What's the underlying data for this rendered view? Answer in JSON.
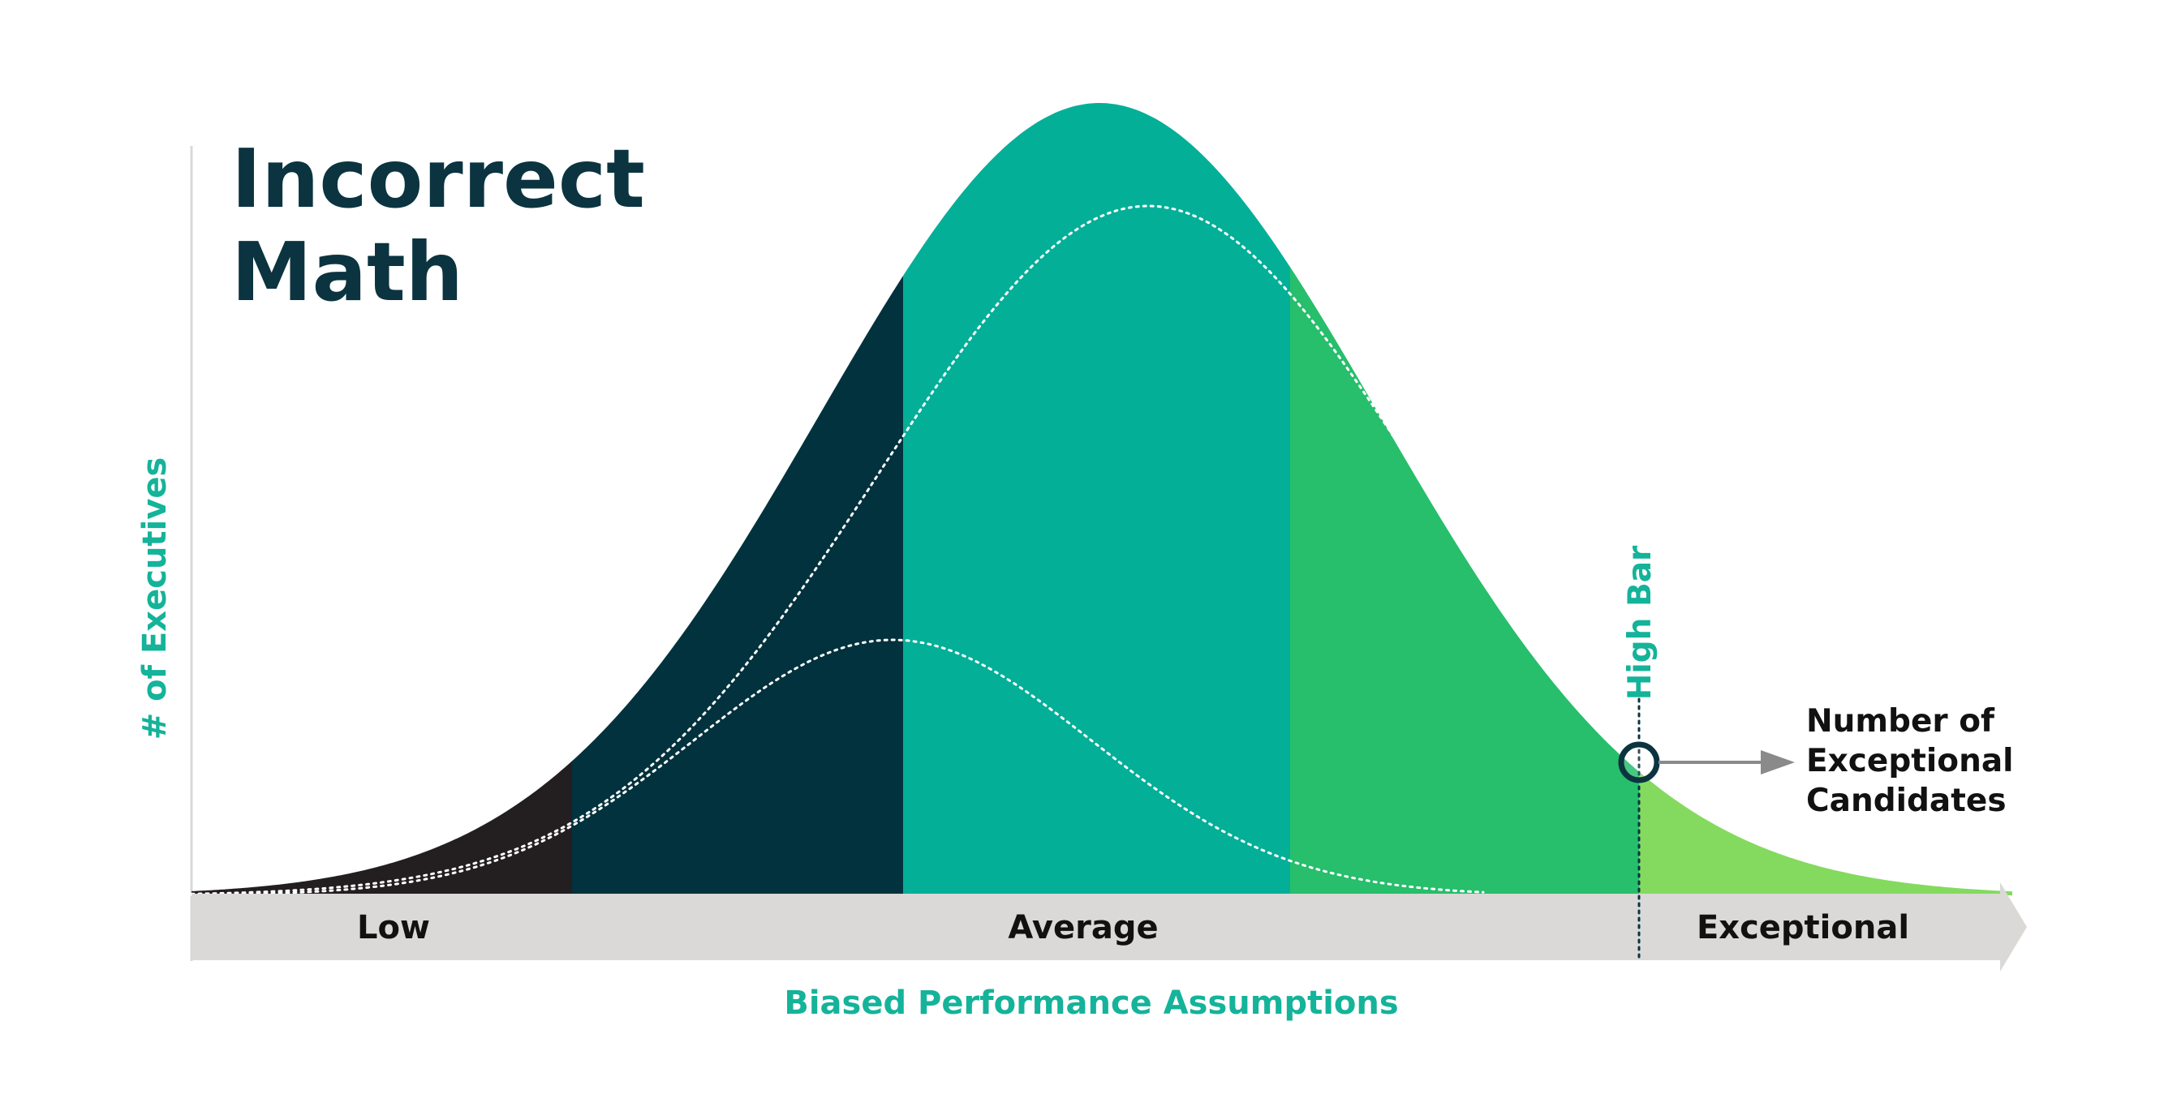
{
  "title": {
    "line1": "Incorrect",
    "line2": "Math"
  },
  "y_axis_label": "# of Executives",
  "x_axis_label": "Biased Performance Assumptions",
  "bands": {
    "low": "Low",
    "average": "Average",
    "exceptional": "Exceptional"
  },
  "high_bar_label": "High Bar",
  "callout": {
    "line1": "Number of",
    "line2": "Exceptional",
    "line3": "Candidates"
  },
  "colors": {
    "teal": "#04AF98",
    "dark_navy": "#02323D",
    "near_black": "#231F20",
    "green": "#27BE6C",
    "light_green": "#84DA5F",
    "axis_bar": "#DAD9D7",
    "title": "#0B3440",
    "accent_text": "#14B39A"
  },
  "icons": [
    "high-bar-marker-icon",
    "arrow-right-icon"
  ]
}
